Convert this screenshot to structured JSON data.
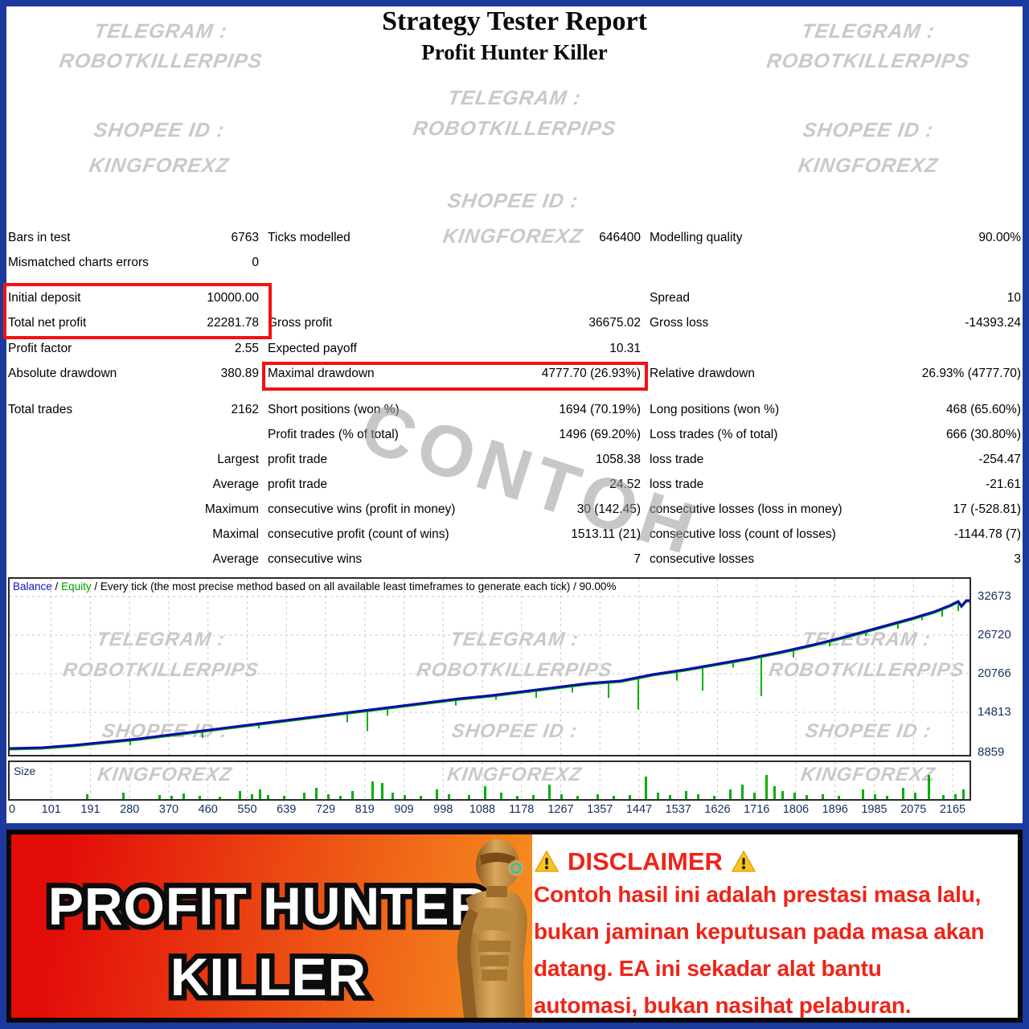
{
  "header": {
    "title": "Strategy Tester Report",
    "subtitle": "Profit Hunter Killer"
  },
  "watermarks": {
    "telegram_label": "TELEGRAM :",
    "telegram_value": "ROBOTKILLERPIPS",
    "shopee_label": "SHOPEE ID :",
    "shopee_value": "KINGFOREXZ",
    "sample_overlay": "CONTOH"
  },
  "stats": {
    "rows": [
      [
        "Bars in test",
        "6763",
        "Ticks modelled",
        "646400",
        "Modelling quality",
        "90.00%"
      ],
      [
        "Mismatched charts errors",
        "0",
        "",
        "",
        "",
        ""
      ],
      [
        "Initial deposit",
        "10000.00",
        "",
        "",
        "Spread",
        "10"
      ],
      [
        "Total net profit",
        "22281.78",
        "Gross profit",
        "36675.02",
        "Gross loss",
        "-14393.24"
      ],
      [
        "Profit factor",
        "2.55",
        "Expected payoff",
        "10.31",
        "",
        ""
      ],
      [
        "Absolute drawdown",
        "380.89",
        "Maximal drawdown",
        "4777.70 (26.93%)",
        "Relative drawdown",
        "26.93% (4777.70)"
      ],
      [
        "Total trades",
        "2162",
        "Short positions (won %)",
        "1694 (70.19%)",
        "Long positions (won %)",
        "468 (65.60%)"
      ],
      [
        "",
        "",
        "Profit trades (% of total)",
        "1496 (69.20%)",
        "Loss trades (% of total)",
        "666 (30.80%)"
      ],
      [
        "",
        "Largest",
        "profit trade",
        "1058.38",
        "loss trade",
        "-254.47"
      ],
      [
        "",
        "Average",
        "profit trade",
        "24.52",
        "loss trade",
        "-21.61"
      ],
      [
        "",
        "Maximum",
        "consecutive wins (profit in money)",
        "30 (142.45)",
        "consecutive losses (loss in money)",
        "17 (-528.81)"
      ],
      [
        "",
        "Maximal",
        "consecutive profit (count of wins)",
        "1513.11 (21)",
        "consecutive loss (count of losses)",
        "-1144.78 (7)"
      ],
      [
        "",
        "Average",
        "consecutive wins",
        "7",
        "consecutive losses",
        "3"
      ]
    ]
  },
  "chart": {
    "legend": {
      "balance": "Balance",
      "equity": "Equity",
      "separator": " / ",
      "method": "Every tick (the most precise method based on all available least timeframes to generate each tick)",
      "quality": "90.00%"
    },
    "y_ticks": [
      "32673",
      "26720",
      "20766",
      "14813",
      "8859"
    ],
    "x_ticks": [
      "0",
      "101",
      "191",
      "280",
      "370",
      "460",
      "550",
      "639",
      "729",
      "819",
      "909",
      "998",
      "1088",
      "1178",
      "1267",
      "1357",
      "1447",
      "1537",
      "1626",
      "1716",
      "1806",
      "1896",
      "1985",
      "2075",
      "2165"
    ],
    "size_label": "Size",
    "balance_points": [
      [
        0,
        211
      ],
      [
        40,
        210
      ],
      [
        80,
        207
      ],
      [
        120,
        203
      ],
      [
        160,
        199
      ],
      [
        200,
        194
      ],
      [
        240,
        189
      ],
      [
        280,
        184
      ],
      [
        320,
        179
      ],
      [
        360,
        174
      ],
      [
        400,
        169
      ],
      [
        440,
        164
      ],
      [
        480,
        159
      ],
      [
        520,
        154
      ],
      [
        560,
        149
      ],
      [
        600,
        145
      ],
      [
        640,
        140
      ],
      [
        680,
        135
      ],
      [
        720,
        130
      ],
      [
        760,
        127
      ],
      [
        800,
        119
      ],
      [
        840,
        113
      ],
      [
        880,
        106
      ],
      [
        920,
        99
      ],
      [
        960,
        91
      ],
      [
        1000,
        82
      ],
      [
        1040,
        72
      ],
      [
        1080,
        61
      ],
      [
        1120,
        50
      ],
      [
        1150,
        41
      ],
      [
        1170,
        33
      ],
      [
        1180,
        28
      ],
      [
        1184,
        34
      ],
      [
        1190,
        27
      ],
      [
        1194,
        27
      ]
    ],
    "equity_spikes": [
      [
        150,
        7
      ],
      [
        240,
        9
      ],
      [
        310,
        6
      ],
      [
        420,
        12
      ],
      [
        445,
        26
      ],
      [
        470,
        10
      ],
      [
        555,
        8
      ],
      [
        605,
        6
      ],
      [
        655,
        10
      ],
      [
        700,
        9
      ],
      [
        745,
        20
      ],
      [
        782,
        40
      ],
      [
        830,
        12
      ],
      [
        862,
        30
      ],
      [
        900,
        8
      ],
      [
        935,
        50
      ],
      [
        975,
        10
      ],
      [
        1020,
        7
      ],
      [
        1065,
        6
      ],
      [
        1105,
        8
      ],
      [
        1135,
        6
      ],
      [
        1160,
        10
      ],
      [
        1180,
        12
      ]
    ],
    "size_bars": [
      [
        95,
        6
      ],
      [
        140,
        8
      ],
      [
        185,
        5
      ],
      [
        200,
        4
      ],
      [
        215,
        7
      ],
      [
        235,
        4
      ],
      [
        260,
        3
      ],
      [
        285,
        10
      ],
      [
        300,
        6
      ],
      [
        310,
        12
      ],
      [
        320,
        5
      ],
      [
        340,
        4
      ],
      [
        365,
        8
      ],
      [
        380,
        14
      ],
      [
        395,
        6
      ],
      [
        410,
        4
      ],
      [
        425,
        10
      ],
      [
        450,
        22
      ],
      [
        462,
        20
      ],
      [
        475,
        8
      ],
      [
        490,
        5
      ],
      [
        510,
        4
      ],
      [
        530,
        12
      ],
      [
        545,
        6
      ],
      [
        570,
        5
      ],
      [
        590,
        16
      ],
      [
        610,
        8
      ],
      [
        630,
        4
      ],
      [
        650,
        5
      ],
      [
        670,
        18
      ],
      [
        685,
        6
      ],
      [
        705,
        4
      ],
      [
        730,
        6
      ],
      [
        750,
        4
      ],
      [
        770,
        5
      ],
      [
        790,
        28
      ],
      [
        805,
        8
      ],
      [
        820,
        5
      ],
      [
        840,
        10
      ],
      [
        855,
        6
      ],
      [
        875,
        4
      ],
      [
        895,
        12
      ],
      [
        910,
        18
      ],
      [
        925,
        8
      ],
      [
        940,
        30
      ],
      [
        950,
        16
      ],
      [
        960,
        10
      ],
      [
        975,
        8
      ],
      [
        990,
        5
      ],
      [
        1010,
        6
      ],
      [
        1030,
        4
      ],
      [
        1060,
        12
      ],
      [
        1075,
        6
      ],
      [
        1090,
        4
      ],
      [
        1110,
        14
      ],
      [
        1125,
        8
      ],
      [
        1142,
        30
      ],
      [
        1160,
        5
      ],
      [
        1175,
        6
      ],
      [
        1185,
        12
      ]
    ],
    "colors": {
      "balance_line": "#0b0bb0",
      "equity_line": "#00b000",
      "balance_text": "#1515c8",
      "equity_text": "#00a000",
      "axis_text": "#16305e",
      "grid": "#c8c8c8"
    }
  },
  "highlight_color": "#f2120d",
  "banner": {
    "product_line1": "PROFIT HUNTER",
    "product_line2": "KILLER",
    "disclaimer_title": "DISCLAIMER",
    "disclaimer_lines": [
      "Contoh hasil ini adalah prestasi masa lalu,",
      "bukan jaminan keputusan pada masa akan",
      "datang. EA ini sekadar alat bantu",
      "automasi, bukan nasihat pelaburan."
    ],
    "colors": {
      "text_red": "#ee2418",
      "gradient_from": "#e20c09",
      "gradient_to": "#f58a1e",
      "warn_yellow": "#f8c51c"
    }
  }
}
